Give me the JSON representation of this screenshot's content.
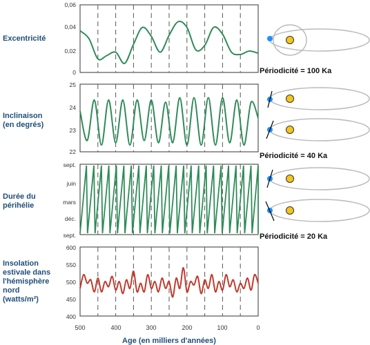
{
  "x_axis": {
    "label": "Age (en milliers d'années)",
    "ticks": [
      "500",
      "400",
      "300",
      "200",
      "100",
      "0"
    ]
  },
  "panels": [
    {
      "label_lines": [
        "Excentricité"
      ],
      "y_ticks": [
        "0,06",
        "0,04",
        "0,02",
        "0"
      ],
      "periodicity": "Périodicité = 100 Ka",
      "color": "#2e8b57"
    },
    {
      "label_lines": [
        "Inclinaison",
        "(en degrés)"
      ],
      "y_ticks": [
        "25",
        "24",
        "23",
        "22"
      ],
      "periodicity": "Périodicité = 40 Ka",
      "color": "#2e8b57"
    },
    {
      "label_lines": [
        "Durée du",
        "périhélie"
      ],
      "y_ticks": [
        "sept.",
        "juin",
        "mars",
        "déc.",
        "sept."
      ],
      "periodicity": "Périodicité = 20 Ka",
      "color": "#2e8b57"
    },
    {
      "label_lines": [
        "Insolation",
        "estivale dans",
        "l'hémisphère",
        "nord",
        "(watts/m²)"
      ],
      "y_ticks": [
        "600",
        "550",
        "500",
        "450",
        "400"
      ],
      "color": "#c0392b"
    }
  ],
  "chart_data": [
    {
      "type": "line",
      "title": "Excentricité",
      "xlabel": "Age (en milliers d'années)",
      "x": [
        500,
        475,
        450,
        425,
        400,
        375,
        350,
        325,
        300,
        275,
        250,
        225,
        200,
        175,
        150,
        125,
        100,
        75,
        50,
        25,
        0
      ],
      "values": [
        0.037,
        0.03,
        0.012,
        0.015,
        0.018,
        0.008,
        0.025,
        0.04,
        0.032,
        0.018,
        0.033,
        0.045,
        0.04,
        0.02,
        0.024,
        0.04,
        0.034,
        0.018,
        0.016,
        0.019,
        0.017
      ],
      "xlim": [
        500,
        0
      ],
      "ylim": [
        0,
        0.06
      ]
    },
    {
      "type": "line",
      "title": "Inclinaison (en degrés)",
      "xlabel": "Age (en milliers d'années)",
      "x": [
        500,
        480,
        460,
        440,
        420,
        400,
        380,
        360,
        340,
        320,
        300,
        280,
        260,
        240,
        220,
        200,
        180,
        160,
        140,
        120,
        100,
        80,
        60,
        40,
        20,
        0
      ],
      "values": [
        23.8,
        22.5,
        24.3,
        22.3,
        24.3,
        22.4,
        24.3,
        22.3,
        24.3,
        22.5,
        24.3,
        22.4,
        24.2,
        22.4,
        24.4,
        22.3,
        24.4,
        22.3,
        24.4,
        22.3,
        24.4,
        22.4,
        24.3,
        22.3,
        24.2,
        23.5
      ],
      "xlim": [
        500,
        0
      ],
      "ylim": [
        22,
        25
      ]
    },
    {
      "type": "line",
      "title": "Durée du périhélie",
      "xlabel": "Age (en milliers d'années)",
      "x_range": [
        500,
        0
      ],
      "period_ka": 21,
      "y_categories": [
        "sept.",
        "juin",
        "mars",
        "déc.",
        "sept."
      ],
      "note_shape": "sawtooth"
    },
    {
      "type": "line",
      "title": "Insolation estivale dans l'hémisphère nord (watts/m²)",
      "xlabel": "Age (en milliers d'années)",
      "x": [
        500,
        490,
        480,
        470,
        460,
        450,
        440,
        430,
        420,
        410,
        400,
        390,
        380,
        370,
        360,
        350,
        340,
        330,
        320,
        310,
        300,
        290,
        280,
        270,
        260,
        250,
        240,
        230,
        220,
        210,
        200,
        190,
        180,
        170,
        160,
        150,
        140,
        130,
        120,
        110,
        100,
        90,
        80,
        70,
        60,
        50,
        40,
        30,
        20,
        10,
        0
      ],
      "values": [
        480,
        520,
        495,
        505,
        470,
        510,
        470,
        500,
        485,
        515,
        475,
        500,
        465,
        505,
        480,
        530,
        470,
        495,
        470,
        520,
        480,
        500,
        470,
        510,
        480,
        500,
        455,
        510,
        480,
        540,
        470,
        500,
        490,
        515,
        465,
        505,
        480,
        520,
        470,
        500,
        475,
        520,
        485,
        505,
        470,
        495,
        480,
        510,
        475,
        520,
        495
      ],
      "xlim": [
        500,
        0
      ],
      "ylim": [
        400,
        600
      ]
    }
  ]
}
